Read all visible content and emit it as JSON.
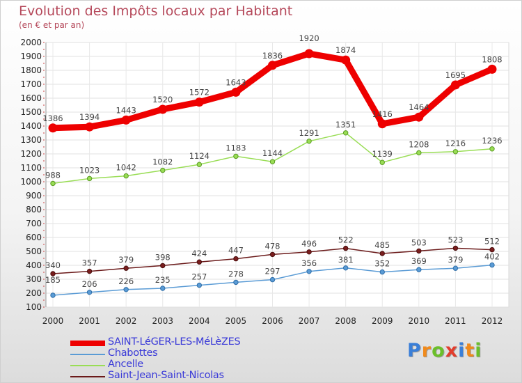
{
  "chart_data": {
    "type": "line",
    "title": "Evolution des Impôts locaux par Habitant",
    "subtitle": "(en € et par an)",
    "x": [
      "2000",
      "2001",
      "2002",
      "2003",
      "2004",
      "2005",
      "2006",
      "2007",
      "2008",
      "2009",
      "2010",
      "2011",
      "2012"
    ],
    "ylim": [
      100,
      2000
    ],
    "yticks": [
      100,
      200,
      300,
      400,
      500,
      600,
      700,
      800,
      900,
      1000,
      1100,
      1200,
      1300,
      1400,
      1500,
      1600,
      1700,
      1800,
      1900,
      2000
    ],
    "grid": true,
    "legend_position": "bottom-left",
    "series": [
      {
        "name": "SAINT-LéGER-LES-MéLèZES",
        "color": "#ee0000",
        "values": [
          1386,
          1394,
          1443,
          1520,
          1572,
          1643,
          1836,
          1920,
          1874,
          1416,
          1464,
          1695,
          1808
        ]
      },
      {
        "name": "Chabottes",
        "color": "#5a9bd5",
        "values": [
          185,
          206,
          226,
          235,
          257,
          278,
          297,
          356,
          381,
          352,
          369,
          379,
          402
        ]
      },
      {
        "name": "Ancelle",
        "color": "#99dd55",
        "values": [
          988,
          1023,
          1042,
          1082,
          1124,
          1183,
          1144,
          1291,
          1351,
          1139,
          1208,
          1216,
          1236
        ]
      },
      {
        "name": "Saint-Jean-Saint-Nicolas",
        "color": "#6b1a1a",
        "values": [
          340,
          357,
          379,
          398,
          424,
          447,
          478,
          496,
          522,
          485,
          503,
          523,
          512
        ]
      }
    ]
  },
  "logo": {
    "letters": [
      {
        "char": "P",
        "color": "#3a7fd8"
      },
      {
        "char": "r",
        "color": "#f08a1c"
      },
      {
        "char": "o",
        "color": "#6bbf2a"
      },
      {
        "char": "x",
        "color": "#e23d2d"
      },
      {
        "char": "i",
        "color": "#3a7fd8"
      },
      {
        "char": "t",
        "color": "#f08a1c"
      },
      {
        "char": "i",
        "color": "#6bbf2a"
      }
    ]
  }
}
